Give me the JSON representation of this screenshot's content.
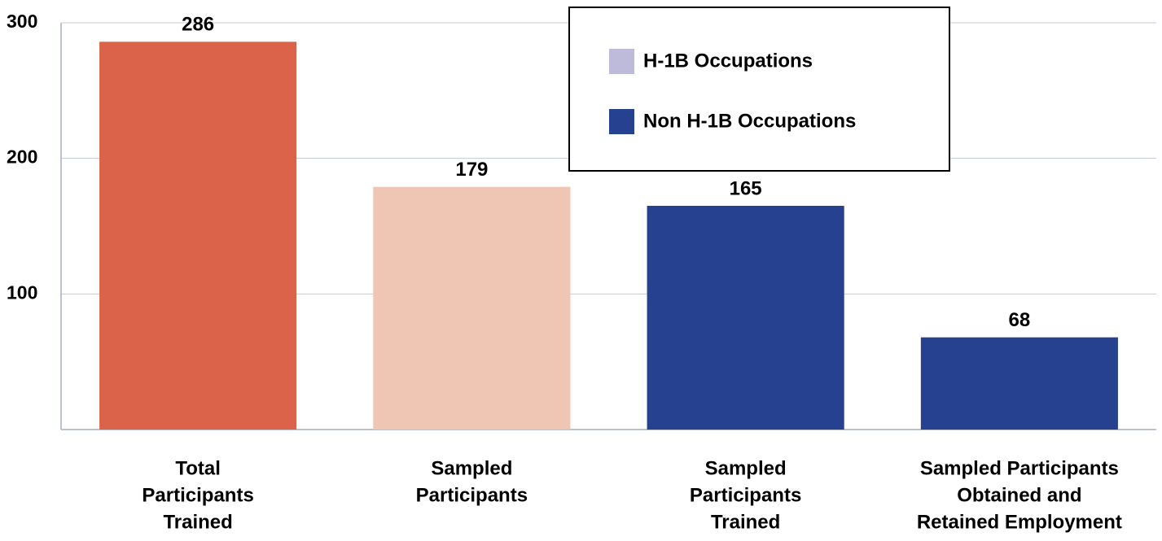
{
  "chart_data": {
    "type": "bar",
    "categories": [
      [
        "Total",
        "Participants",
        "Trained"
      ],
      [
        "Sampled",
        "Participants"
      ],
      [
        "Sampled",
        "Participants",
        "Trained"
      ],
      [
        "Sampled Participants",
        "Obtained and",
        "Retained Employment"
      ]
    ],
    "values": [
      286,
      179,
      null,
      null
    ],
    "colors": [
      "#db634a",
      "#efc6b4",
      null,
      null
    ],
    "series": [
      {
        "name": "H-1B Occupations",
        "color": "#bdbbd9",
        "values": [
          null,
          null,
          0,
          0
        ]
      },
      {
        "name": "Non H-1B Occupations",
        "color": "#26418f",
        "values": [
          null,
          null,
          165,
          68
        ]
      }
    ],
    "ylim": [
      0,
      300
    ],
    "yticks": [
      100,
      200,
      300
    ],
    "grid": true
  }
}
